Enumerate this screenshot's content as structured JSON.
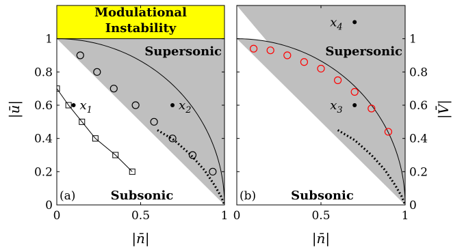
{
  "chart_data": [
    {
      "type": "scatter",
      "panel_label": "(a)",
      "xlabel": "|n̄|",
      "ylabel": "|ū|",
      "xlim": [
        0,
        1
      ],
      "ylim": [
        0,
        1.2
      ],
      "xticks": [
        0,
        0.5,
        1
      ],
      "yticks": [
        0,
        0.2,
        0.4,
        0.6,
        0.8,
        1
      ],
      "top_band_label": [
        "Modulational",
        "Instability"
      ],
      "top_band_color": "#ffff00",
      "region_fill_color": "#bfbfbf",
      "regions": {
        "upper": "Supersonic",
        "lower": "Subsonic"
      },
      "series": [
        {
          "marker": "circle-open",
          "color": "#000000",
          "x": [
            0.14,
            0.24,
            0.34,
            0.47,
            0.58,
            0.69,
            0.81,
            0.93
          ],
          "y": [
            0.9,
            0.8,
            0.7,
            0.6,
            0.5,
            0.4,
            0.3,
            0.2
          ]
        },
        {
          "marker": "square-line",
          "color": "#000000",
          "x": [
            0.0,
            0.07,
            0.15,
            0.23,
            0.35,
            0.45
          ],
          "y": [
            0.7,
            0.6,
            0.5,
            0.4,
            0.3,
            0.2
          ]
        },
        {
          "marker": "dotted-line",
          "color": "#000000",
          "x": [
            0.6,
            0.7,
            0.8,
            0.88,
            0.94,
            0.98,
            1.0
          ],
          "y": [
            0.45,
            0.39,
            0.3,
            0.21,
            0.12,
            0.05,
            0.0
          ]
        }
      ],
      "points": [
        {
          "label": "x",
          "sub": "1",
          "x": 0.1,
          "y": 0.6
        },
        {
          "label": "x",
          "sub": "2",
          "x": 0.69,
          "y": 0.6
        }
      ]
    },
    {
      "type": "scatter",
      "panel_label": "(b)",
      "xlabel": "|n̄|",
      "ylabel": "|V̄|",
      "xlim": [
        0,
        1
      ],
      "ylim": [
        0,
        1.2
      ],
      "xticks": [
        0,
        0.5,
        1
      ],
      "yticks": [
        0,
        0.2,
        0.4,
        0.6,
        0.8,
        1
      ],
      "region_fill_color": "#bfbfbf",
      "regions": {
        "upper": "Supersonic",
        "lower": "Subsonic"
      },
      "series": [
        {
          "marker": "circle-open",
          "color": "#ff0000",
          "x": [
            0.1,
            0.2,
            0.3,
            0.4,
            0.5,
            0.6,
            0.7,
            0.8,
            0.9
          ],
          "y": [
            0.94,
            0.93,
            0.9,
            0.86,
            0.82,
            0.75,
            0.68,
            0.58,
            0.44
          ]
        },
        {
          "marker": "dotted-line",
          "color": "#000000",
          "x": [
            0.6,
            0.7,
            0.8,
            0.88,
            0.94,
            0.98,
            1.0
          ],
          "y": [
            0.45,
            0.39,
            0.3,
            0.21,
            0.12,
            0.05,
            0.0
          ]
        }
      ],
      "points": [
        {
          "label": "x",
          "sub": "3",
          "x": 0.7,
          "y": 0.6
        },
        {
          "label": "x",
          "sub": "4",
          "x": 0.7,
          "y": 1.1
        }
      ]
    }
  ]
}
